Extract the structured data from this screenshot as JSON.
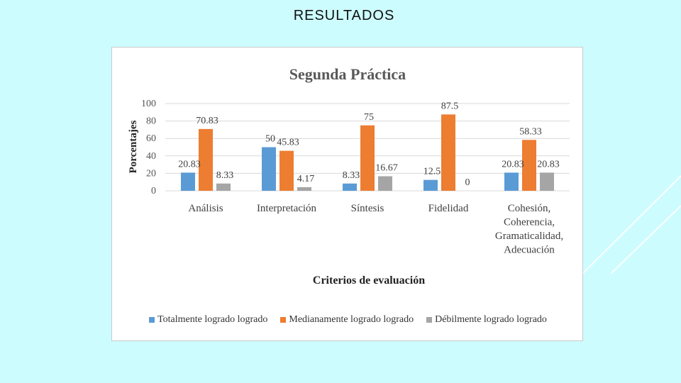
{
  "slide": {
    "title": "RESULTADOS"
  },
  "chart_data": {
    "type": "bar",
    "title": "Segunda Práctica",
    "xlabel": "Criterios de evaluación",
    "ylabel": "Porcentajes",
    "ylim": [
      0,
      100
    ],
    "yticks": [
      0,
      20,
      40,
      60,
      80,
      100
    ],
    "grid": true,
    "legend_position": "bottom",
    "categories": [
      [
        "Análisis"
      ],
      [
        "Interpretación"
      ],
      [
        "Síntesis"
      ],
      [
        "Fidelidad"
      ],
      [
        "Cohesión,",
        "Coherencia,",
        "Gramaticalidad,",
        "Adecuación"
      ]
    ],
    "series": [
      {
        "name": "Totalmente logrado logrado",
        "color": "#5b9bd5",
        "values": [
          20.83,
          50,
          8.33,
          12.5,
          20.83
        ],
        "labels": [
          "20.83",
          "50",
          "8.33",
          "12.5",
          "20.83"
        ]
      },
      {
        "name": "Medianamente logrado logrado",
        "color": "#ed7d31",
        "values": [
          70.83,
          45.83,
          75,
          87.5,
          58.33
        ],
        "labels": [
          "70.83",
          "45.83",
          "75",
          "87.5",
          "58.33"
        ]
      },
      {
        "name": "Débilmente logrado logrado",
        "color": "#a5a5a5",
        "values": [
          8.33,
          4.17,
          16.67,
          0,
          20.83
        ],
        "labels": [
          "8.33",
          "4.17",
          "16.67",
          "0",
          "20.83"
        ]
      }
    ]
  }
}
